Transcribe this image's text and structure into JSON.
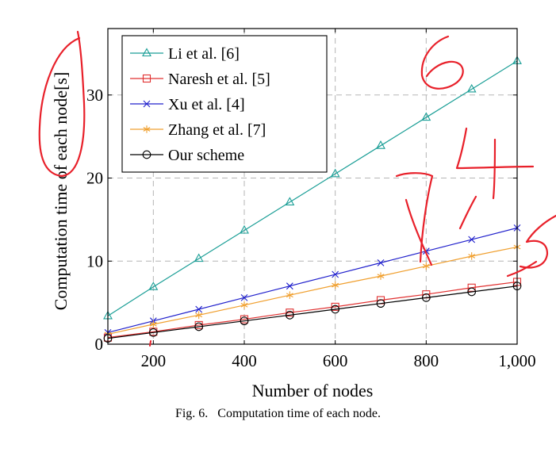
{
  "figure": {
    "caption_label": "Fig. 6.",
    "caption_text": "Computation time of each node."
  },
  "chart_data": {
    "type": "line",
    "title": "",
    "xlabel": "Number of nodes",
    "ylabel": "Computation time of each node[s]",
    "xlim": [
      100,
      1000
    ],
    "ylim": [
      0,
      38
    ],
    "xticks": [
      200,
      400,
      600,
      800,
      1000
    ],
    "xtick_labels": [
      "200",
      "400",
      "600",
      "800",
      "1,000"
    ],
    "yticks": [
      0,
      10,
      20,
      30
    ],
    "ytick_labels": [
      "0",
      "10",
      "20",
      "30"
    ],
    "grid": true,
    "legend_position": "top-left",
    "x": [
      100,
      200,
      300,
      400,
      500,
      600,
      700,
      800,
      900,
      1000
    ],
    "series": [
      {
        "name": "Li et al. [6]",
        "marker": "triangle",
        "color": "#1a9e96",
        "values": [
          3.4,
          6.9,
          10.3,
          13.7,
          17.1,
          20.5,
          23.9,
          27.3,
          30.7,
          34.1
        ]
      },
      {
        "name": "Naresh et al. [5]",
        "marker": "square",
        "color": "#e03030",
        "values": [
          0.8,
          1.5,
          2.3,
          3.0,
          3.8,
          4.5,
          5.3,
          6.0,
          6.8,
          7.5
        ]
      },
      {
        "name": "Xu et al. [4]",
        "marker": "x",
        "color": "#2020cc",
        "values": [
          1.4,
          2.8,
          4.2,
          5.6,
          7.0,
          8.4,
          9.8,
          11.2,
          12.6,
          14.0
        ]
      },
      {
        "name": "Zhang et al. [7]",
        "marker": "star",
        "color": "#f0a030",
        "values": [
          1.2,
          2.4,
          3.5,
          4.7,
          5.9,
          7.1,
          8.2,
          9.4,
          10.6,
          11.7
        ]
      },
      {
        "name": "Our scheme",
        "marker": "circle",
        "color": "#000000",
        "values": [
          0.7,
          1.4,
          2.1,
          2.8,
          3.5,
          4.2,
          4.9,
          5.6,
          6.3,
          7.0
        ]
      }
    ]
  },
  "annotations": {
    "ink_color": "#e8202a"
  }
}
